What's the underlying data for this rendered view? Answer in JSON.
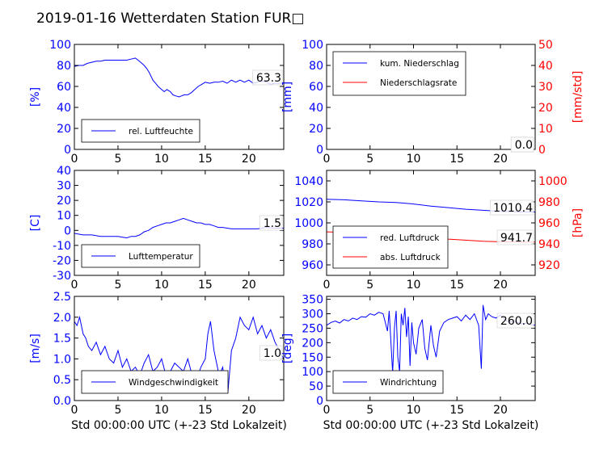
{
  "page_title": "2019-01-16 Wetterdaten Station FUR□",
  "colors": {
    "primary": "#0000ff",
    "secondary": "#ff0000",
    "axis": "#000000"
  },
  "chart_data": [
    {
      "id": "humidity",
      "type": "line",
      "xlim": [
        0,
        24
      ],
      "xticks": [
        0,
        5,
        10,
        15,
        20
      ],
      "ylim": [
        0,
        100
      ],
      "yticks": [
        0,
        20,
        40,
        60,
        80,
        100
      ],
      "ylabel": "[%]",
      "xlabel": "",
      "current_value": "63.3",
      "legend_position": "lower-center",
      "series": [
        {
          "name": "rel. Luftfeuchte",
          "color": "#0000ff",
          "axis": "left",
          "x": [
            0,
            0.5,
            1,
            1.5,
            2,
            2.5,
            3,
            3.5,
            4,
            4.5,
            5,
            5.5,
            6,
            6.5,
            7,
            7.3,
            7.6,
            8,
            8.3,
            8.6,
            9,
            9.3,
            9.6,
            10,
            10.3,
            10.6,
            11,
            11.3,
            11.6,
            12,
            12.3,
            12.6,
            13,
            13.4,
            13.8,
            14.2,
            14.6,
            15,
            15.5,
            16,
            16.5,
            17,
            17.5,
            18,
            18.5,
            19,
            19.5,
            20,
            20.5,
            21,
            21.5,
            22,
            22.5,
            23,
            23.5,
            24
          ],
          "y": [
            79,
            80,
            80,
            82,
            83,
            84,
            84,
            85,
            85,
            85,
            85,
            85,
            85,
            86,
            87,
            85,
            83,
            80,
            77,
            73,
            66,
            63,
            60,
            57,
            55,
            57,
            55,
            52,
            51,
            50,
            51,
            52,
            52,
            54,
            57,
            60,
            62,
            64,
            63,
            64,
            64,
            65,
            63,
            66,
            64,
            66,
            64,
            66,
            63,
            64,
            65,
            64,
            62,
            63,
            63,
            63.3
          ]
        }
      ]
    },
    {
      "id": "precipitation",
      "type": "line",
      "xlim": [
        0,
        24
      ],
      "xticks": [
        0,
        5,
        10,
        15,
        20
      ],
      "ylim": [
        0,
        100
      ],
      "yticks": [
        0,
        20,
        40,
        60,
        80,
        100
      ],
      "ylabel": "[mm]",
      "ylim_right": [
        0,
        50
      ],
      "yticks_right": [
        0,
        10,
        20,
        30,
        40,
        50
      ],
      "ylabel_right": "[mm/std]",
      "xlabel": "",
      "current_value": "0.0",
      "current_value_right": "0.0",
      "legend_position": "upper-left",
      "series": [
        {
          "name": "kum. Niederschlag",
          "color": "#0000ff",
          "axis": "left",
          "x": [
            0,
            24
          ],
          "y": [
            0,
            0
          ]
        },
        {
          "name": "Niederschlagsrate",
          "color": "#ff0000",
          "axis": "right",
          "x": [
            0,
            24
          ],
          "y": [
            0,
            0
          ]
        }
      ]
    },
    {
      "id": "temperature",
      "type": "line",
      "xlim": [
        0,
        24
      ],
      "xticks": [
        0,
        5,
        10,
        15,
        20
      ],
      "ylim": [
        -30,
        40
      ],
      "yticks": [
        -30,
        -20,
        -10,
        0,
        10,
        20,
        30,
        40
      ],
      "ylabel": "[C]",
      "xlabel": "",
      "current_value": "1.5",
      "legend_position": "lower-center",
      "series": [
        {
          "name": "Lufttemperatur",
          "color": "#0000ff",
          "axis": "left",
          "x": [
            0,
            1,
            2,
            3,
            4,
            5,
            6,
            6.5,
            7,
            7.5,
            8,
            8.5,
            9,
            9.5,
            10,
            10.5,
            11,
            11.5,
            12,
            12.5,
            13,
            13.5,
            14,
            14.5,
            15,
            15.5,
            16,
            16.5,
            17,
            18,
            19,
            20,
            21,
            22,
            23,
            24
          ],
          "y": [
            -2,
            -3,
            -3,
            -4,
            -4,
            -4,
            -5,
            -4,
            -4,
            -3,
            -1,
            0,
            2,
            3,
            4,
            5,
            5,
            6,
            7,
            8,
            7,
            6,
            5,
            5,
            4,
            4,
            3,
            2,
            2,
            1,
            1,
            1,
            1,
            2,
            1.5,
            1.5
          ]
        }
      ]
    },
    {
      "id": "pressure",
      "type": "line",
      "xlim": [
        0,
        24
      ],
      "xticks": [
        0,
        5,
        10,
        15,
        20
      ],
      "ylim": [
        950,
        1050
      ],
      "yticks": [
        960,
        980,
        1000,
        1020,
        1040
      ],
      "ylabel": "",
      "ylim_right": [
        910,
        1010
      ],
      "yticks_right": [
        920,
        940,
        960,
        980,
        1000
      ],
      "ylabel_right": "[hPa]",
      "xlabel": "",
      "current_value": "1010.4",
      "current_value_right": "941.7",
      "legend_position": "lower-left",
      "series": [
        {
          "name": "red. Luftdruck",
          "color": "#0000ff",
          "axis": "left",
          "x": [
            0,
            2,
            4,
            6,
            8,
            10,
            12,
            14,
            16,
            18,
            20,
            22,
            24
          ],
          "y": [
            1022.5,
            1022,
            1021,
            1020,
            1019.5,
            1018,
            1016,
            1014.5,
            1013,
            1012,
            1011,
            1010.6,
            1010.4
          ]
        },
        {
          "name": "abs. Luftdruck",
          "color": "#ff0000",
          "axis": "right",
          "x": [
            0,
            2,
            4,
            6,
            8,
            10,
            12,
            14,
            16,
            18,
            20,
            22,
            24
          ],
          "y": [
            951.5,
            951,
            950,
            949,
            948.5,
            947.5,
            946,
            944.5,
            943.5,
            942.5,
            942,
            941.8,
            941.7
          ]
        }
      ]
    },
    {
      "id": "windspeed",
      "type": "line",
      "xlim": [
        0,
        24
      ],
      "xticks": [
        0,
        5,
        10,
        15,
        20
      ],
      "ylim": [
        0,
        2.5
      ],
      "yticks": [
        0.0,
        0.5,
        1.0,
        1.5,
        2.0,
        2.5
      ],
      "ylabel": "[m/s]",
      "xlabel": "Std 00:00:00 UTC (+-23 Std Lokalzeit)",
      "current_value": "1.0",
      "legend_position": "lower-center",
      "series": [
        {
          "name": "Windgeschwindigkeit",
          "color": "#0000ff",
          "axis": "left",
          "x": [
            0,
            0.3,
            0.6,
            1,
            1.3,
            1.6,
            2,
            2.5,
            3,
            3.5,
            4,
            4.5,
            5,
            5.5,
            6,
            6.5,
            7,
            7.5,
            8,
            8.5,
            9,
            9.5,
            10,
            10.5,
            11,
            11.5,
            12,
            12.5,
            13,
            13.5,
            14,
            14.5,
            15,
            15.3,
            15.6,
            16,
            16.3,
            16.6,
            17,
            17.3,
            17.6,
            18,
            18.5,
            19,
            19.5,
            20,
            20.5,
            21,
            21.5,
            22,
            22.5,
            23,
            23.5,
            24
          ],
          "y": [
            1.9,
            1.8,
            2.0,
            1.6,
            1.5,
            1.3,
            1.2,
            1.4,
            1.1,
            1.3,
            1.0,
            0.9,
            1.2,
            0.8,
            1.0,
            0.7,
            0.8,
            0.6,
            0.9,
            1.1,
            0.7,
            0.8,
            1.0,
            0.6,
            0.7,
            0.9,
            0.8,
            0.7,
            1.0,
            0.6,
            0.5,
            0.8,
            1.0,
            1.6,
            1.9,
            1.2,
            0.9,
            0.6,
            0.8,
            0.3,
            0.2,
            1.2,
            1.5,
            2.0,
            1.8,
            1.7,
            2.0,
            1.6,
            1.8,
            1.5,
            1.7,
            1.4,
            1.2,
            1.0
          ]
        }
      ]
    },
    {
      "id": "winddirection",
      "type": "line",
      "xlim": [
        0,
        24
      ],
      "xticks": [
        0,
        5,
        10,
        15,
        20
      ],
      "ylim": [
        0,
        360
      ],
      "yticks": [
        0,
        50,
        100,
        150,
        200,
        250,
        300,
        350
      ],
      "ylabel": "[deg]",
      "xlabel": "Std 00:00:00 UTC (+-23 Std Lokalzeit)",
      "current_value": "260.0",
      "legend_position": "lower-left",
      "series": [
        {
          "name": "Windrichtung",
          "color": "#0000ff",
          "axis": "left",
          "x": [
            0,
            0.5,
            1,
            1.5,
            2,
            2.5,
            3,
            3.5,
            4,
            4.5,
            5,
            5.5,
            6,
            6.5,
            7,
            7.2,
            7.4,
            7.6,
            7.8,
            8,
            8.2,
            8.4,
            8.6,
            8.8,
            9,
            9.2,
            9.4,
            9.6,
            9.8,
            10,
            10.3,
            10.6,
            11,
            11.3,
            11.6,
            12,
            12.3,
            12.6,
            13,
            13.5,
            14,
            14.5,
            15,
            15.5,
            16,
            16.5,
            17,
            17.5,
            17.8,
            18,
            18.3,
            18.6,
            19,
            19.5,
            20,
            20.5,
            21,
            21.5,
            22,
            22.5,
            23,
            23.5,
            24
          ],
          "y": [
            260,
            270,
            275,
            268,
            280,
            275,
            285,
            280,
            290,
            288,
            300,
            295,
            305,
            300,
            240,
            310,
            200,
            95,
            250,
            310,
            150,
            100,
            300,
            260,
            320,
            220,
            290,
            120,
            270,
            200,
            160,
            250,
            280,
            180,
            140,
            260,
            190,
            150,
            240,
            270,
            280,
            285,
            290,
            275,
            295,
            280,
            300,
            260,
            110,
            330,
            280,
            300,
            290,
            285,
            295,
            280,
            270,
            275,
            270,
            265,
            268,
            262,
            260
          ]
        }
      ]
    }
  ]
}
